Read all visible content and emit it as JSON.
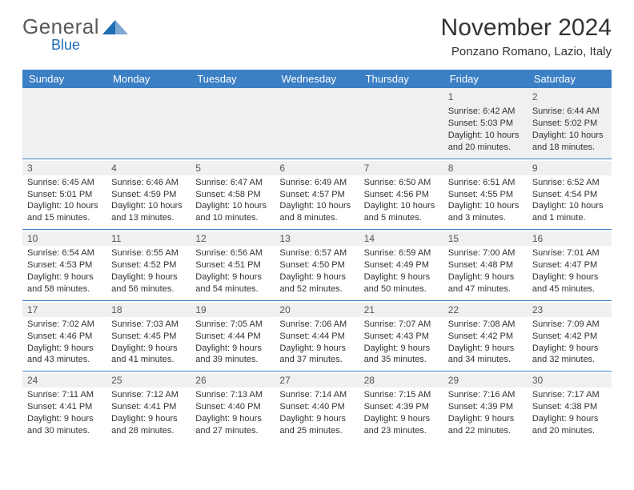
{
  "brand": {
    "name": "General",
    "accent_word": "Blue",
    "logo_color": "#1f6db5"
  },
  "title": {
    "month": "November 2024",
    "location": "Ponzano Romano, Lazio, Italy"
  },
  "colors": {
    "header_bg": "#3b7fc4",
    "header_text": "#ffffff",
    "daynum_bg": "#eef0f2",
    "border": "#3b7fc4",
    "text": "#333333"
  },
  "day_headers": [
    "Sunday",
    "Monday",
    "Tuesday",
    "Wednesday",
    "Thursday",
    "Friday",
    "Saturday"
  ],
  "weeks": [
    [
      null,
      null,
      null,
      null,
      null,
      {
        "n": "1",
        "sr": "Sunrise: 6:42 AM",
        "ss": "Sunset: 5:03 PM",
        "d1": "Daylight: 10 hours",
        "d2": "and 20 minutes."
      },
      {
        "n": "2",
        "sr": "Sunrise: 6:44 AM",
        "ss": "Sunset: 5:02 PM",
        "d1": "Daylight: 10 hours",
        "d2": "and 18 minutes."
      }
    ],
    [
      {
        "n": "3",
        "sr": "Sunrise: 6:45 AM",
        "ss": "Sunset: 5:01 PM",
        "d1": "Daylight: 10 hours",
        "d2": "and 15 minutes."
      },
      {
        "n": "4",
        "sr": "Sunrise: 6:46 AM",
        "ss": "Sunset: 4:59 PM",
        "d1": "Daylight: 10 hours",
        "d2": "and 13 minutes."
      },
      {
        "n": "5",
        "sr": "Sunrise: 6:47 AM",
        "ss": "Sunset: 4:58 PM",
        "d1": "Daylight: 10 hours",
        "d2": "and 10 minutes."
      },
      {
        "n": "6",
        "sr": "Sunrise: 6:49 AM",
        "ss": "Sunset: 4:57 PM",
        "d1": "Daylight: 10 hours",
        "d2": "and 8 minutes."
      },
      {
        "n": "7",
        "sr": "Sunrise: 6:50 AM",
        "ss": "Sunset: 4:56 PM",
        "d1": "Daylight: 10 hours",
        "d2": "and 5 minutes."
      },
      {
        "n": "8",
        "sr": "Sunrise: 6:51 AM",
        "ss": "Sunset: 4:55 PM",
        "d1": "Daylight: 10 hours",
        "d2": "and 3 minutes."
      },
      {
        "n": "9",
        "sr": "Sunrise: 6:52 AM",
        "ss": "Sunset: 4:54 PM",
        "d1": "Daylight: 10 hours",
        "d2": "and 1 minute."
      }
    ],
    [
      {
        "n": "10",
        "sr": "Sunrise: 6:54 AM",
        "ss": "Sunset: 4:53 PM",
        "d1": "Daylight: 9 hours",
        "d2": "and 58 minutes."
      },
      {
        "n": "11",
        "sr": "Sunrise: 6:55 AM",
        "ss": "Sunset: 4:52 PM",
        "d1": "Daylight: 9 hours",
        "d2": "and 56 minutes."
      },
      {
        "n": "12",
        "sr": "Sunrise: 6:56 AM",
        "ss": "Sunset: 4:51 PM",
        "d1": "Daylight: 9 hours",
        "d2": "and 54 minutes."
      },
      {
        "n": "13",
        "sr": "Sunrise: 6:57 AM",
        "ss": "Sunset: 4:50 PM",
        "d1": "Daylight: 9 hours",
        "d2": "and 52 minutes."
      },
      {
        "n": "14",
        "sr": "Sunrise: 6:59 AM",
        "ss": "Sunset: 4:49 PM",
        "d1": "Daylight: 9 hours",
        "d2": "and 50 minutes."
      },
      {
        "n": "15",
        "sr": "Sunrise: 7:00 AM",
        "ss": "Sunset: 4:48 PM",
        "d1": "Daylight: 9 hours",
        "d2": "and 47 minutes."
      },
      {
        "n": "16",
        "sr": "Sunrise: 7:01 AM",
        "ss": "Sunset: 4:47 PM",
        "d1": "Daylight: 9 hours",
        "d2": "and 45 minutes."
      }
    ],
    [
      {
        "n": "17",
        "sr": "Sunrise: 7:02 AM",
        "ss": "Sunset: 4:46 PM",
        "d1": "Daylight: 9 hours",
        "d2": "and 43 minutes."
      },
      {
        "n": "18",
        "sr": "Sunrise: 7:03 AM",
        "ss": "Sunset: 4:45 PM",
        "d1": "Daylight: 9 hours",
        "d2": "and 41 minutes."
      },
      {
        "n": "19",
        "sr": "Sunrise: 7:05 AM",
        "ss": "Sunset: 4:44 PM",
        "d1": "Daylight: 9 hours",
        "d2": "and 39 minutes."
      },
      {
        "n": "20",
        "sr": "Sunrise: 7:06 AM",
        "ss": "Sunset: 4:44 PM",
        "d1": "Daylight: 9 hours",
        "d2": "and 37 minutes."
      },
      {
        "n": "21",
        "sr": "Sunrise: 7:07 AM",
        "ss": "Sunset: 4:43 PM",
        "d1": "Daylight: 9 hours",
        "d2": "and 35 minutes."
      },
      {
        "n": "22",
        "sr": "Sunrise: 7:08 AM",
        "ss": "Sunset: 4:42 PM",
        "d1": "Daylight: 9 hours",
        "d2": "and 34 minutes."
      },
      {
        "n": "23",
        "sr": "Sunrise: 7:09 AM",
        "ss": "Sunset: 4:42 PM",
        "d1": "Daylight: 9 hours",
        "d2": "and 32 minutes."
      }
    ],
    [
      {
        "n": "24",
        "sr": "Sunrise: 7:11 AM",
        "ss": "Sunset: 4:41 PM",
        "d1": "Daylight: 9 hours",
        "d2": "and 30 minutes."
      },
      {
        "n": "25",
        "sr": "Sunrise: 7:12 AM",
        "ss": "Sunset: 4:41 PM",
        "d1": "Daylight: 9 hours",
        "d2": "and 28 minutes."
      },
      {
        "n": "26",
        "sr": "Sunrise: 7:13 AM",
        "ss": "Sunset: 4:40 PM",
        "d1": "Daylight: 9 hours",
        "d2": "and 27 minutes."
      },
      {
        "n": "27",
        "sr": "Sunrise: 7:14 AM",
        "ss": "Sunset: 4:40 PM",
        "d1": "Daylight: 9 hours",
        "d2": "and 25 minutes."
      },
      {
        "n": "28",
        "sr": "Sunrise: 7:15 AM",
        "ss": "Sunset: 4:39 PM",
        "d1": "Daylight: 9 hours",
        "d2": "and 23 minutes."
      },
      {
        "n": "29",
        "sr": "Sunrise: 7:16 AM",
        "ss": "Sunset: 4:39 PM",
        "d1": "Daylight: 9 hours",
        "d2": "and 22 minutes."
      },
      {
        "n": "30",
        "sr": "Sunrise: 7:17 AM",
        "ss": "Sunset: 4:38 PM",
        "d1": "Daylight: 9 hours",
        "d2": "and 20 minutes."
      }
    ]
  ]
}
